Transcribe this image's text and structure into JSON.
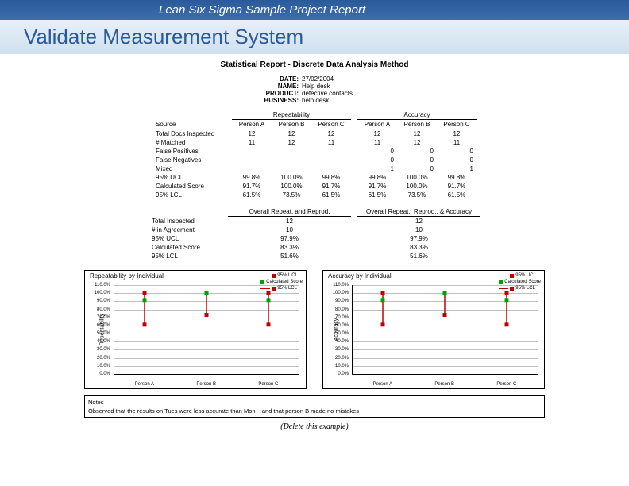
{
  "header": {
    "subtitle": "Lean Six Sigma Sample Project Report",
    "title": "Validate Measurement System"
  },
  "report": {
    "title": "Statistical Report - Discrete Data Analysis Method",
    "meta": {
      "date_label": "DATE:",
      "date": "27/02/2004",
      "name_label": "NAME:",
      "name": "Help desk",
      "product_label": "PRODUCT:",
      "product": "defective contacts",
      "business_label": "BUSINESS:",
      "business": "help desk"
    }
  },
  "table": {
    "group_headers": {
      "repeatability": "Repeatability",
      "accuracy": "Accuracy"
    },
    "col_headers": {
      "source": "Source",
      "pa": "Person A",
      "pb": "Person B",
      "pc": "Person C"
    },
    "rows": {
      "total_docs": {
        "label": "Total Docs Inspected",
        "r": [
          "12",
          "12",
          "12"
        ],
        "a": [
          "12",
          "12",
          "12"
        ]
      },
      "matched": {
        "label": "# Matched",
        "r": [
          "11",
          "12",
          "11"
        ],
        "a": [
          "11",
          "12",
          "11"
        ]
      },
      "false_pos": {
        "label": "False Positives",
        "r": [
          "",
          "",
          ""
        ],
        "a": [
          "0",
          "0",
          "0"
        ]
      },
      "false_neg": {
        "label": "False Negatives",
        "r": [
          "",
          "",
          ""
        ],
        "a": [
          "0",
          "0",
          "0"
        ]
      },
      "mixed": {
        "label": "Mixed",
        "r": [
          "",
          "",
          ""
        ],
        "a": [
          "1",
          "0",
          "1"
        ]
      },
      "ucl": {
        "label": "95% UCL",
        "r": [
          "99.8%",
          "100.0%",
          "99.8%"
        ],
        "a": [
          "99.8%",
          "100.0%",
          "99.8%"
        ]
      },
      "score": {
        "label": "Calculated Score",
        "r": [
          "91.7%",
          "100.0%",
          "91.7%"
        ],
        "a": [
          "91.7%",
          "100.0%",
          "91.7%"
        ]
      },
      "lcl": {
        "label": "95% LCL",
        "r": [
          "61.5%",
          "73.5%",
          "61.5%"
        ],
        "a": [
          "61.5%",
          "73.5%",
          "61.5%"
        ]
      }
    }
  },
  "summary": {
    "group_headers": {
      "rr": "Overall Repeat. and Reprod.",
      "rra": "Overall Repeat., Reprod., & Accuracy"
    },
    "rows": {
      "total": {
        "label": "Total Inspected",
        "rr": "12",
        "rra": "12"
      },
      "agree": {
        "label": "# in Agreement",
        "rr": "10",
        "rra": "10"
      },
      "ucl": {
        "label": "95% UCL",
        "rr": "97.9%",
        "rra": "97.9%"
      },
      "score": {
        "label": "Calculated Score",
        "rr": "83.3%",
        "rra": "83.3%"
      },
      "lcl": {
        "label": "95% LCL",
        "rr": "51.6%",
        "rra": "51.6%"
      }
    }
  },
  "charts": {
    "left": {
      "title": "Repeatability by Individual",
      "y_label": "Repeatability",
      "legend": {
        "ucl": "95% UCL",
        "score": "Calculated Score",
        "lcl": "95% LCL"
      },
      "colors": {
        "ucl": "#c00000",
        "score": "#00a000",
        "lcl": "#c00000",
        "marker": "#c00000"
      },
      "y_ticks": [
        "0.0%",
        "10.0%",
        "20.0%",
        "30.0%",
        "40.0%",
        "50.0%",
        "60.0%",
        "70.0%",
        "80.0%",
        "90.0%",
        "100.0%",
        "110.0%"
      ],
      "x_labels": [
        "Person A",
        "Person B",
        "Person C"
      ],
      "ylim": [
        0,
        110
      ],
      "series": {
        "ucl": [
          99.8,
          100.0,
          99.8
        ],
        "score": [
          91.7,
          100.0,
          91.7
        ],
        "lcl": [
          61.5,
          73.5,
          61.5
        ]
      }
    },
    "right": {
      "title": "Accuracy by Individual",
      "y_label": "Accuracy",
      "legend": {
        "ucl": "95% UCL",
        "score": "Calculated Score",
        "lcl": "95% LCL"
      },
      "colors": {
        "ucl": "#c00000",
        "score": "#00a000",
        "lcl": "#c00000",
        "marker": "#c00000"
      },
      "y_ticks": [
        "0.0%",
        "10.0%",
        "20.0%",
        "30.0%",
        "40.0%",
        "50.0%",
        "60.0%",
        "70.0%",
        "80.0%",
        "90.0%",
        "100.0%",
        "110.0%"
      ],
      "x_labels": [
        "Person A",
        "Person B",
        "Person C"
      ],
      "ylim": [
        0,
        110
      ],
      "series": {
        "ucl": [
          99.8,
          100.0,
          99.8
        ],
        "score": [
          91.7,
          100.0,
          91.7
        ],
        "lcl": [
          61.5,
          73.5,
          61.5
        ]
      }
    }
  },
  "notes": {
    "label": "Notes",
    "text1": "Observed that the results on Tues were less accurate than Mon",
    "text2": "and that person B made no mistakes"
  },
  "footer": {
    "delete": "(Delete this example)"
  }
}
